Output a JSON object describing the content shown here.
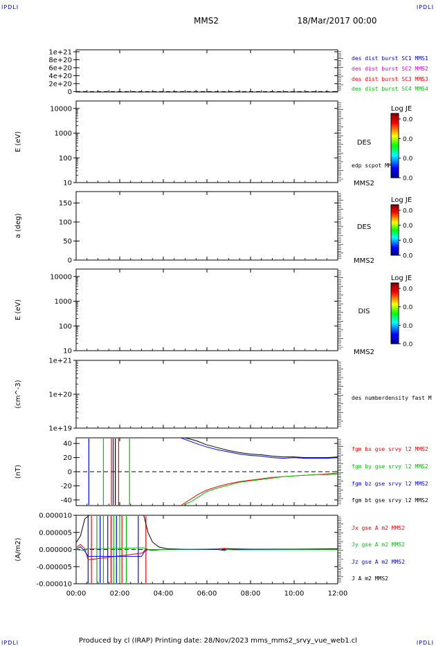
{
  "corner_label": "IPDLI",
  "header": {
    "spacecraft": "MMS2",
    "date": "18/Mar/2017 00:00"
  },
  "footer": {
    "text": "Produced by cl (IRAP)   Printing date: 28/Nov/2023   mms_mms2_srvy_vue_web1.cl"
  },
  "colors": {
    "blue": "#0000ff",
    "magenta": "#e000e0",
    "red": "#ff0000",
    "green": "#00c000",
    "black": "#000000"
  },
  "chart_data": [
    {
      "type": "line",
      "ylabel": "",
      "ytick_labels": [
        "1e+21",
        "8e+20",
        "6e+20",
        "4e+20",
        "2e+20",
        "0"
      ],
      "yticks": [
        1e+21,
        8e+20,
        6e+20,
        4e+20,
        2e+20,
        0
      ],
      "ylim": [
        -1e+19,
        1.05e+21
      ],
      "zero_line": true,
      "legend": [
        {
          "text": "des dist burst SC1 MMS1",
          "color": "#0000ff"
        },
        {
          "text": "des dist burst SC2 MMS2",
          "color": "#e000e0"
        },
        {
          "text": "des dist burst SC3 MMS3",
          "color": "#ff0000"
        },
        {
          "text": "des dist burst SC4 MMS4",
          "color": "#00c000"
        }
      ],
      "series": []
    },
    {
      "type": "heatmap",
      "ylabel": "E (eV)",
      "yscale": "log",
      "ytick_labels": [
        "10000",
        "1000",
        "100",
        "10"
      ],
      "yticks": [
        10000,
        1000,
        100,
        10
      ],
      "ylim": [
        10,
        20000
      ],
      "instrument_label": "DES",
      "spacecraft_label": "MMS2",
      "overlay_label": "edp scpot MMS2",
      "colorbar": {
        "title": "Log JE",
        "tick_labels": [
          "0.0",
          "0.0",
          "0.0",
          "0.0"
        ]
      },
      "values": []
    },
    {
      "type": "heatmap",
      "ylabel": "a (deg)",
      "ytick_labels": [
        "150",
        "100",
        "50",
        "0"
      ],
      "yticks": [
        150,
        100,
        50,
        0
      ],
      "ylim": [
        0,
        180
      ],
      "instrument_label": "DES",
      "spacecraft_label": "MMS2",
      "colorbar": {
        "title": "Log JE",
        "tick_labels": [
          "0.0",
          "0.0",
          "0.0",
          "0.0"
        ]
      },
      "values": []
    },
    {
      "type": "heatmap",
      "ylabel": "E (eV)",
      "yscale": "log",
      "ytick_labels": [
        "10000",
        "1000",
        "100",
        "10"
      ],
      "yticks": [
        10000,
        1000,
        100,
        10
      ],
      "ylim": [
        10,
        20000
      ],
      "instrument_label": "DIS",
      "spacecraft_label": "MMS2",
      "colorbar": {
        "title": "Log JE",
        "tick_labels": [
          "0.0",
          "0.0",
          "0.0",
          "0.0"
        ]
      },
      "values": []
    },
    {
      "type": "line",
      "ylabel": "(cm^-3)",
      "yscale": "log",
      "ytick_labels": [
        "1e+21",
        "1e+20",
        "1e+19"
      ],
      "yticks": [
        1e+21,
        1e+20,
        1e+19
      ],
      "ylim": [
        1e+19,
        1e+21
      ],
      "legend": [
        {
          "text": "des numberdensity fast M",
          "color": "#000000"
        }
      ],
      "series": []
    },
    {
      "type": "line",
      "ylabel": "(nT)",
      "ytick_labels": [
        "40",
        "20",
        "0",
        "-20",
        "-40"
      ],
      "yticks": [
        40,
        20,
        0,
        -20,
        -40
      ],
      "ylim": [
        -48,
        48
      ],
      "zero_line": true,
      "legend": [
        {
          "text": "fgm bx gse srvy l2 MMS2",
          "color": "#ff0000"
        },
        {
          "text": "fgm by gse srvy l2 MMS2",
          "color": "#00c000"
        },
        {
          "text": "fgm bz gse srvy l2 MMS2",
          "color": "#0000ff"
        },
        {
          "text": "fgm bt gse srvy l2 MMS2",
          "color": "#000000"
        }
      ],
      "series": [
        {
          "name": "fgm bt gse srvy l2 MMS2",
          "color": "#000000",
          "x": [
            5.0,
            5.5,
            6.0,
            6.5,
            7.0,
            7.5,
            8.0,
            8.5,
            9.0,
            9.5,
            10.0,
            10.5,
            11.0,
            11.5,
            12.0
          ],
          "y": [
            48,
            44,
            38,
            34,
            30,
            27,
            25,
            24,
            22,
            21,
            21,
            20,
            20,
            20,
            21
          ]
        },
        {
          "name": "fgm bz gse srvy l2 MMS2",
          "color": "#0000ff",
          "x": [
            4.8,
            5.5,
            6.0,
            6.5,
            7.0,
            7.5,
            8.0,
            8.5,
            9.0,
            9.5,
            10.0,
            10.5,
            11.0,
            11.5,
            12.0
          ],
          "y": [
            48,
            40,
            35,
            31,
            28,
            25,
            23,
            22,
            20,
            19,
            20,
            19,
            19,
            19,
            20
          ]
        },
        {
          "name": "fgm bx gse srvy l2 MMS2",
          "color": "#ff0000",
          "x": [
            4.8,
            5.2,
            5.6,
            6.0,
            6.5,
            7.0,
            7.5,
            8.0,
            8.5,
            9.0,
            9.5,
            10.0,
            10.5,
            11.0,
            11.5,
            12.0
          ],
          "y": [
            -48,
            -40,
            -32,
            -26,
            -21,
            -17,
            -14,
            -12,
            -10,
            -8,
            -7,
            -6,
            -5,
            -4,
            -4,
            -3
          ]
        },
        {
          "name": "fgm by gse srvy l2 MMS2",
          "color": "#00c000",
          "x": [
            4.9,
            5.3,
            5.7,
            6.0,
            6.5,
            7.0,
            7.5,
            8.0,
            8.5,
            9.0,
            9.5,
            10.0,
            10.5,
            11.0,
            11.5,
            12.0
          ],
          "y": [
            -48,
            -42,
            -34,
            -28,
            -23,
            -19,
            -15,
            -13,
            -11,
            -9,
            -7,
            -6,
            -5,
            -4,
            -3,
            -2
          ]
        }
      ],
      "spikes": [
        {
          "x": 0.58,
          "color": "#0000ff"
        },
        {
          "x": 1.25,
          "color": "#00c000"
        },
        {
          "x": 1.62,
          "color": "#ff0000"
        },
        {
          "x": 1.7,
          "color": "#0000ff"
        },
        {
          "x": 1.8,
          "color": "#000000"
        },
        {
          "x": 1.95,
          "color": "#ff0000"
        },
        {
          "x": 2.45,
          "color": "#00c000"
        }
      ]
    },
    {
      "type": "line",
      "ylabel": "(A/m2)",
      "ytick_labels": [
        "0.000010",
        "0.000005",
        "0.000000",
        "-0.000005",
        "-0.000010"
      ],
      "yticks": [
        1e-05,
        5e-06,
        0,
        -5e-06,
        -1e-05
      ],
      "ylim": [
        -1e-05,
        1e-05
      ],
      "zero_line": true,
      "legend": [
        {
          "text": "Jx gse A m2 MMS2",
          "color": "#ff0000"
        },
        {
          "text": "Jy gse A m2 MMS2",
          "color": "#00c000"
        },
        {
          "text": "Jz gse A m2 MMS2",
          "color": "#0000ff"
        },
        {
          "text": "J A m2 MMS2",
          "color": "#000000"
        }
      ],
      "series": [
        {
          "name": "J A m2 MMS2",
          "color": "#000000",
          "x": [
            0.0,
            0.2,
            0.4,
            0.6,
            3.1,
            3.3,
            3.5,
            3.8,
            4.2,
            5.0,
            6.0,
            6.8,
            7.2,
            8.0,
            10.0,
            12.0
          ],
          "y": [
            2e-06,
            4e-06,
            9e-06,
            1e-05,
            1e-05,
            5e-06,
            2.2e-06,
            7e-07,
            2e-07,
            1e-07,
            1e-07,
            3e-07,
            2e-07,
            1e-07,
            1e-07,
            2e-07
          ]
        },
        {
          "name": "Jx gse A m2 MMS2",
          "color": "#ff0000",
          "x": [
            0.0,
            0.2,
            0.4,
            0.55,
            3.05,
            3.2,
            3.4,
            3.6,
            4.0,
            6.5,
            6.8,
            7.0,
            8.0,
            12.0
          ],
          "y": [
            5e-07,
            1.5e-06,
            2e-07,
            -3e-06,
            -1e-06,
            3e-07,
            -2e-07,
            0.0,
            0.0,
            0.0,
            4e-07,
            0.0,
            0.0,
            0.0
          ]
        },
        {
          "name": "Jz gse A m2 MMS2",
          "color": "#0000ff",
          "x": [
            0.0,
            0.2,
            0.4,
            0.55,
            3.0,
            3.15,
            3.3,
            3.5,
            4.0,
            6.5,
            6.8,
            7.0,
            8.0,
            12.0
          ],
          "y": [
            0.0,
            8e-07,
            -5e-07,
            -2e-06,
            -2e-06,
            -5e-07,
            0.0,
            -2e-07,
            0.0,
            0.0,
            -3e-07,
            2e-07,
            0.0,
            0.0
          ]
        },
        {
          "name": "Jy gse A m2 MMS2",
          "color": "#00c000",
          "x": [
            0.0,
            0.3,
            0.5,
            3.1,
            3.3,
            4.0,
            6.8,
            7.2,
            12.0
          ],
          "y": [
            0.0,
            -3e-07,
            2e-07,
            5e-07,
            0.0,
            0.0,
            2e-07,
            -1e-07,
            0.0
          ]
        }
      ],
      "spikes": [
        {
          "x": 0.55,
          "color": "#0000ff"
        },
        {
          "x": 0.7,
          "color": "#ff0000"
        },
        {
          "x": 0.95,
          "color": "#00c000"
        },
        {
          "x": 1.1,
          "color": "#0000ff"
        },
        {
          "x": 1.25,
          "color": "#00c000"
        },
        {
          "x": 1.45,
          "color": "#0000ff"
        },
        {
          "x": 1.6,
          "color": "#ff0000"
        },
        {
          "x": 1.72,
          "color": "#00c000"
        },
        {
          "x": 1.85,
          "color": "#0000ff"
        },
        {
          "x": 2.0,
          "color": "#00c000"
        },
        {
          "x": 2.1,
          "color": "#ff0000"
        },
        {
          "x": 2.3,
          "color": "#00c000"
        },
        {
          "x": 2.85,
          "color": "#0000ff"
        },
        {
          "x": 3.2,
          "color": "#ff0000"
        }
      ]
    }
  ],
  "time_axis": {
    "tick_labels": [
      "00:00",
      "02:00",
      "04:00",
      "06:00",
      "08:00",
      "10:00",
      "12:00"
    ],
    "ticks_hours": [
      0,
      2,
      4,
      6,
      8,
      10,
      12
    ],
    "range_hours": [
      0,
      12
    ]
  }
}
